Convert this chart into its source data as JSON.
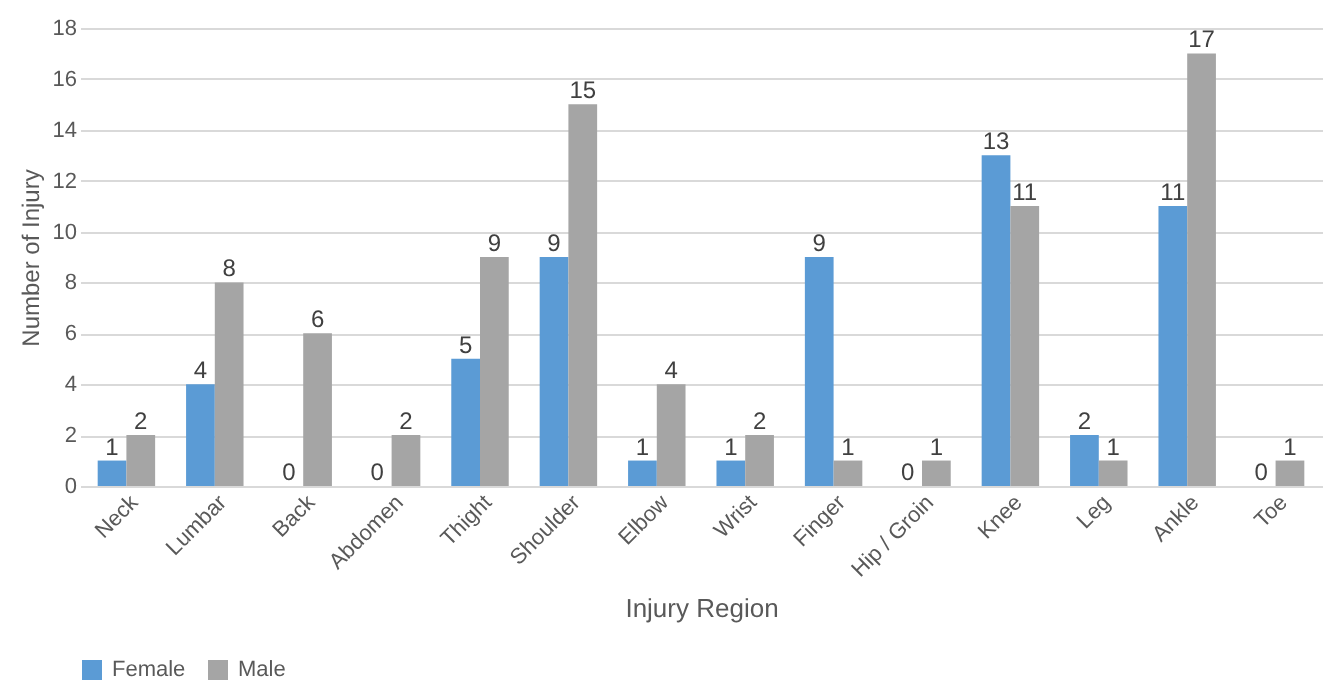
{
  "chart_data": {
    "type": "bar",
    "xlabel": "Injury Region",
    "ylabel": "Number of Injury",
    "categories": [
      "Neck",
      "Lumbar",
      "Back",
      "Abdomen",
      "Thight",
      "Shoulder",
      "Elbow",
      "Wrist",
      "Finger",
      "Hip / Groin",
      "Knee",
      "Leg",
      "Ankle",
      "Toe"
    ],
    "series": [
      {
        "name": "Female",
        "color": "#5b9bd5",
        "values": [
          1,
          4,
          0,
          0,
          5,
          9,
          1,
          1,
          9,
          0,
          13,
          2,
          11,
          0
        ]
      },
      {
        "name": "Male",
        "color": "#a5a5a5",
        "values": [
          2,
          8,
          6,
          2,
          9,
          15,
          4,
          2,
          1,
          1,
          11,
          1,
          17,
          1
        ]
      }
    ],
    "ylim": [
      0,
      18
    ],
    "yticks": [
      0,
      2,
      4,
      6,
      8,
      10,
      12,
      14,
      16,
      18
    ],
    "grid": "y",
    "legend": "bottom",
    "data_labels": true
  }
}
